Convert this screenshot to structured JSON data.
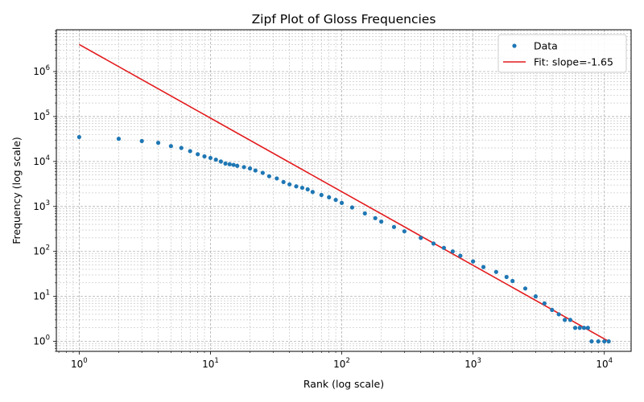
{
  "chart_data": {
    "type": "scatter",
    "title": "Zipf Plot of Gloss Frequencies",
    "xlabel": "Rank (log scale)",
    "ylabel": "Frequency (log scale)",
    "xscale": "log",
    "yscale": "log",
    "xlim": [
      0.67,
      16000
    ],
    "ylim": [
      0.6,
      8500000
    ],
    "grid": true,
    "legend_position": "top-right",
    "x_ticks": [
      {
        "value": 1,
        "base": "10",
        "exp": "0"
      },
      {
        "value": 10,
        "base": "10",
        "exp": "1"
      },
      {
        "value": 100,
        "base": "10",
        "exp": "2"
      },
      {
        "value": 1000,
        "base": "10",
        "exp": "3"
      },
      {
        "value": 10000,
        "base": "10",
        "exp": "4"
      }
    ],
    "y_ticks": [
      {
        "value": 1,
        "base": "10",
        "exp": "0"
      },
      {
        "value": 10,
        "base": "10",
        "exp": "1"
      },
      {
        "value": 100,
        "base": "10",
        "exp": "2"
      },
      {
        "value": 1000,
        "base": "10",
        "exp": "3"
      },
      {
        "value": 10000,
        "base": "10",
        "exp": "4"
      },
      {
        "value": 100000,
        "base": "10",
        "exp": "5"
      },
      {
        "value": 1000000,
        "base": "10",
        "exp": "6"
      }
    ],
    "series": [
      {
        "name": "Data",
        "kind": "scatter",
        "color": "#1f77b4",
        "points": [
          [
            1,
            35000
          ],
          [
            2,
            32000
          ],
          [
            3,
            28500
          ],
          [
            4,
            26000
          ],
          [
            5,
            22000
          ],
          [
            6,
            20000
          ],
          [
            7,
            17000
          ],
          [
            8,
            14500
          ],
          [
            9,
            13000
          ],
          [
            10,
            12000
          ],
          [
            11,
            11000
          ],
          [
            12,
            10000
          ],
          [
            13,
            9000
          ],
          [
            14,
            8700
          ],
          [
            15,
            8400
          ],
          [
            16,
            8000
          ],
          [
            18,
            7500
          ],
          [
            20,
            7000
          ],
          [
            22,
            6300
          ],
          [
            25,
            5600
          ],
          [
            28,
            4700
          ],
          [
            32,
            4200
          ],
          [
            36,
            3500
          ],
          [
            40,
            3100
          ],
          [
            45,
            2800
          ],
          [
            50,
            2600
          ],
          [
            55,
            2400
          ],
          [
            60,
            2100
          ],
          [
            70,
            1800
          ],
          [
            80,
            1600
          ],
          [
            90,
            1400
          ],
          [
            100,
            1200
          ],
          [
            120,
            950
          ],
          [
            150,
            700
          ],
          [
            180,
            550
          ],
          [
            200,
            460
          ],
          [
            250,
            350
          ],
          [
            300,
            280
          ],
          [
            400,
            200
          ],
          [
            500,
            150
          ],
          [
            600,
            120
          ],
          [
            700,
            100
          ],
          [
            800,
            80
          ],
          [
            1000,
            60
          ],
          [
            1200,
            45
          ],
          [
            1500,
            35
          ],
          [
            1800,
            27
          ],
          [
            2000,
            22
          ],
          [
            2500,
            15
          ],
          [
            3000,
            10
          ],
          [
            3500,
            7
          ],
          [
            4000,
            5
          ],
          [
            4500,
            4
          ],
          [
            5000,
            3
          ],
          [
            5500,
            3
          ],
          [
            6000,
            2
          ],
          [
            6500,
            2
          ],
          [
            7000,
            2
          ],
          [
            7500,
            2
          ],
          [
            8000,
            1
          ],
          [
            9000,
            1
          ],
          [
            10000,
            1
          ],
          [
            10800,
            1
          ]
        ]
      },
      {
        "name": "Fit: slope=-1.65",
        "kind": "line",
        "color": "#e31a1c",
        "points": [
          [
            1,
            4000000
          ],
          [
            10800,
            1
          ]
        ]
      }
    ]
  }
}
